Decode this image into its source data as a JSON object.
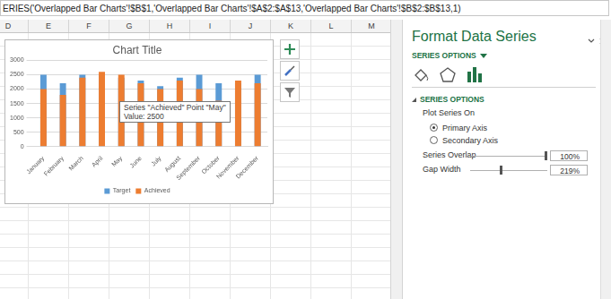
{
  "formula_bar": "ERIES('Overlapped Bar Charts'!$B$1,'Overlapped Bar Charts'!$A$2:$A$13,'Overlapped Bar Charts'!$B$2:$B$13,1)",
  "column_headers": [
    "D",
    "E",
    "F",
    "G",
    "H",
    "I",
    "J",
    "K",
    "L",
    "M"
  ],
  "chart_data": {
    "type": "bar",
    "title": "Chart Title",
    "categories": [
      "January",
      "February",
      "March",
      "April",
      "May",
      "June",
      "July",
      "August",
      "September",
      "October",
      "November",
      "December"
    ],
    "series": [
      {
        "name": "Target",
        "color": "#5b9bd5",
        "values": [
          2500,
          2200,
          2500,
          2500,
          2400,
          2300,
          2100,
          2400,
          2500,
          2200,
          2200,
          2500
        ]
      },
      {
        "name": "Achieved",
        "color": "#ed7d31",
        "values": [
          2000,
          1800,
          2400,
          2600,
          2500,
          2200,
          2000,
          2300,
          2000,
          1600,
          2300,
          2200
        ]
      }
    ],
    "ylim": [
      0,
      3000
    ],
    "yticks": [
      0,
      500,
      1000,
      1500,
      2000,
      2500,
      3000
    ],
    "grid": true,
    "legend": "bottom"
  },
  "tooltip": [
    "Series \"Achieved\" Point \"May\"",
    "Value: 2500"
  ],
  "pane": {
    "title": "Format Data Series",
    "tab": "SERIES OPTIONS",
    "section": "SERIES OPTIONS",
    "group": "Plot Series On",
    "options": [
      "Primary Axis",
      "Secondary Axis"
    ],
    "selected": "Primary Axis",
    "fields": [
      {
        "label": "Series Overlap",
        "value": "100%"
      },
      {
        "label": "Gap Width",
        "value": "219%"
      }
    ]
  }
}
